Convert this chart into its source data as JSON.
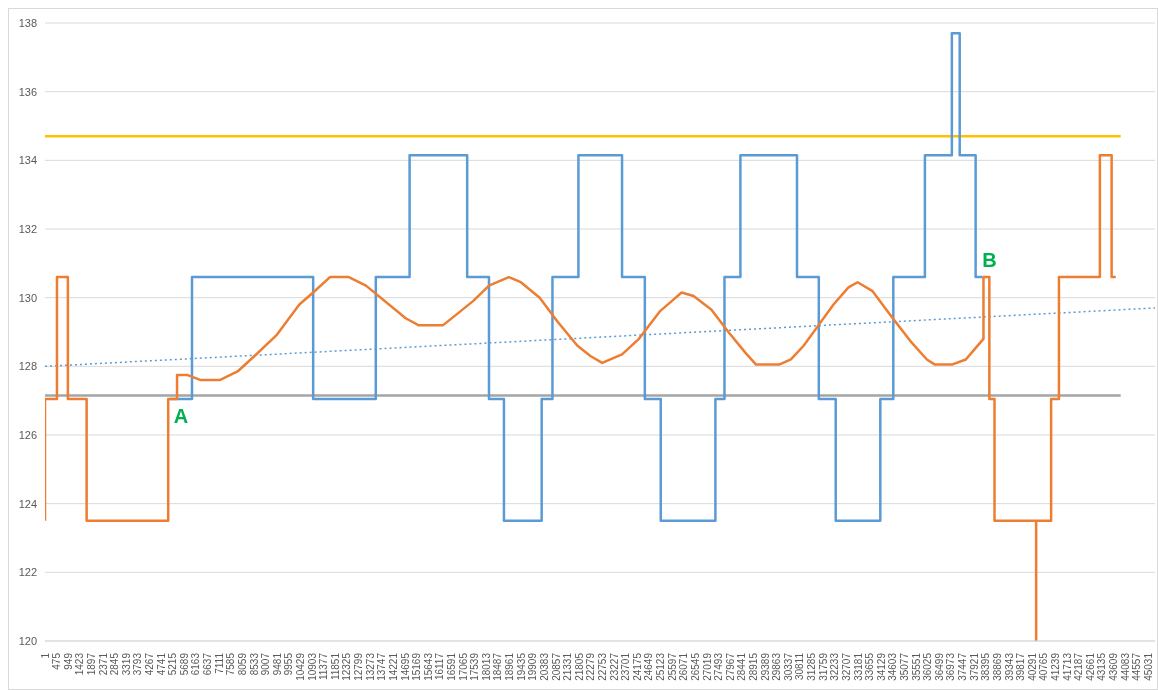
{
  "chart_data": {
    "type": "line",
    "xlim": [
      1,
      45300
    ],
    "xticks": [
      1,
      475,
      949,
      1423,
      1897,
      2371,
      2845,
      3319,
      3793,
      4267,
      4741,
      5215,
      5689,
      6163,
      6637,
      7111,
      7585,
      8059,
      8533,
      9007,
      9481,
      9955,
      10429,
      10903,
      11377,
      11851,
      12325,
      12799,
      13273,
      13747,
      14221,
      14695,
      15169,
      15643,
      16117,
      16591,
      17065,
      17539,
      18013,
      18487,
      18961,
      19435,
      19909,
      20383,
      20857,
      21331,
      21805,
      22279,
      22753,
      23227,
      23701,
      24175,
      24649,
      25123,
      25597,
      26071,
      26545,
      27019,
      27493,
      27967,
      28441,
      28915,
      29389,
      29863,
      30337,
      30811,
      31285,
      31759,
      32233,
      32707,
      33181,
      33655,
      34129,
      34603,
      35077,
      35551,
      36025,
      36499,
      36973,
      37447,
      37921,
      38395,
      38869,
      39343,
      39817,
      40291,
      40765,
      41239,
      41713,
      42187,
      42661,
      43135,
      43609,
      44083,
      44557,
      45031
    ],
    "ylim": [
      120,
      138
    ],
    "yticks": [
      120,
      122,
      124,
      126,
      128,
      130,
      132,
      134,
      136,
      138
    ],
    "grid": "y",
    "marker": "none",
    "series": [
      {
        "color": "#ffc000",
        "x": [
          1,
          43900
        ],
        "values": [
          134.7,
          134.7
        ]
      },
      {
        "color": "#a5a5a5",
        "x": [
          1,
          43900
        ],
        "values": [
          127.15,
          127.15
        ]
      },
      {
        "color": "#5b9bd5",
        "line_style": "dotted",
        "x": [
          1,
          45300
        ],
        "values": [
          128.0,
          129.7
        ]
      },
      {
        "type": "step",
        "color": "#5b9bd5",
        "x": [
          5100,
          6000,
          10945,
          13500,
          14880,
          17230,
          18120,
          18730,
          20270,
          20710,
          21770,
          23550,
          24480,
          25130,
          27360,
          27730,
          28380,
          30690,
          31580,
          32270,
          34090,
          34620,
          35910,
          37010,
          37330,
          37980,
          38260
        ],
        "values": [
          127.05,
          130.6,
          127.05,
          130.6,
          134.15,
          130.6,
          127.05,
          123.5,
          127.05,
          130.6,
          134.15,
          130.6,
          127.05,
          123.5,
          127.05,
          130.6,
          134.15,
          130.6,
          127.05,
          123.5,
          127.05,
          130.6,
          134.15,
          137.7,
          134.15,
          130.6,
          130.6
        ]
      },
      {
        "color": "#ed7d31",
        "x": [
          1,
          1,
          490,
          490,
          935,
          935,
          1700,
          1700,
          5030,
          5030,
          5390,
          5390,
          5800,
          6360,
          7130,
          7860,
          8550,
          9440,
          10380,
          10945,
          11630,
          12400,
          13100,
          14720,
          15240,
          16250,
          17470,
          18120,
          18930,
          19420,
          20190,
          20920,
          21730,
          22260,
          22740,
          23550,
          24240,
          25090,
          25660,
          25980,
          26470,
          27200,
          27890,
          28580,
          29020,
          29960,
          30440,
          30960,
          31570,
          32180,
          32790,
          33160,
          33760,
          34490,
          35300,
          35990,
          36320,
          37010,
          37580,
          37940,
          38300,
          38300,
          38540,
          38540,
          38750,
          38750,
          40450,
          40450,
          40450,
          41060,
          41060,
          41380,
          41380,
          43050,
          43050,
          43530,
          43530,
          43700
        ],
        "values": [
          123.5,
          127.05,
          127.05,
          130.6,
          130.6,
          127.05,
          127.05,
          123.5,
          123.5,
          127.05,
          127.05,
          127.75,
          127.75,
          127.6,
          127.6,
          127.85,
          128.3,
          128.9,
          129.8,
          130.15,
          130.6,
          130.6,
          130.35,
          129.4,
          129.2,
          129.2,
          129.9,
          130.35,
          130.6,
          130.45,
          130.0,
          129.3,
          128.6,
          128.3,
          128.1,
          128.35,
          128.8,
          129.6,
          129.95,
          130.15,
          130.05,
          129.65,
          129.0,
          128.4,
          128.05,
          128.05,
          128.2,
          128.6,
          129.2,
          129.8,
          130.3,
          130.45,
          130.2,
          129.5,
          128.75,
          128.2,
          128.05,
          128.05,
          128.2,
          128.5,
          128.8,
          130.6,
          130.6,
          127.05,
          127.05,
          123.5,
          123.5,
          120,
          123.5,
          123.5,
          127.05,
          127.05,
          130.6,
          130.6,
          134.15,
          134.15,
          130.6,
          130.6
        ]
      }
    ],
    "annotations": [
      {
        "text": "A",
        "x": 5390,
        "y": 127.05
      },
      {
        "text": "B",
        "x": 38300,
        "y": 130.6
      }
    ]
  }
}
